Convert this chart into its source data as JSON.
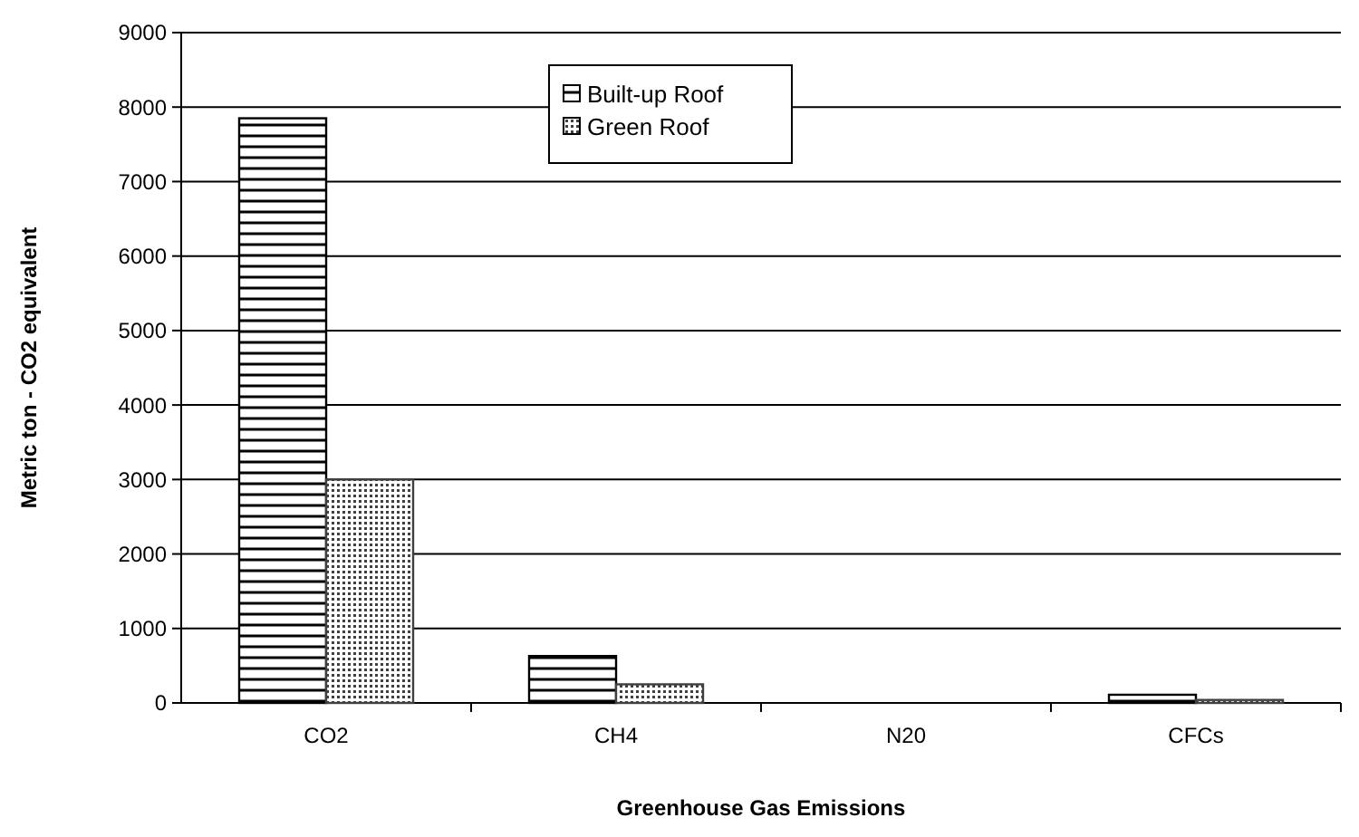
{
  "chart_data": {
    "type": "bar",
    "xlabel": "Greenhouse Gas Emissions",
    "ylabel": "Metric ton - CO2 equivalent",
    "categories": [
      "CO2",
      "CH4",
      "N20",
      "CFCs"
    ],
    "series": [
      {
        "name": "Built-up Roof",
        "color": "#000000",
        "values": [
          7850,
          630,
          0,
          110
        ]
      },
      {
        "name": "Green Roof",
        "color": "#404040",
        "values": [
          3000,
          250,
          0,
          40
        ]
      }
    ],
    "ylim": [
      0,
      9000
    ],
    "yticks": [
      0,
      1000,
      2000,
      3000,
      4000,
      5000,
      6000,
      7000,
      8000,
      9000
    ],
    "grid": "y",
    "legend": "top"
  }
}
